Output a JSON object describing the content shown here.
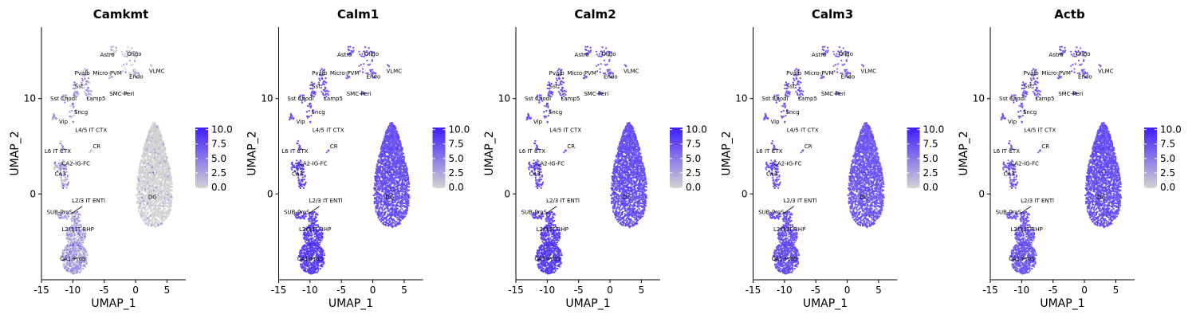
{
  "chart_data": [
    {
      "type": "scatter",
      "title": "Camkmt",
      "xlabel": "UMAP_1",
      "ylabel": "UMAP_2",
      "xlim": [
        -15,
        8
      ],
      "ylim": [
        -9,
        17.5
      ],
      "xticks": [
        -15,
        -10,
        -5,
        0,
        5
      ],
      "yticks": [
        0,
        10
      ],
      "grid": false,
      "legend": {
        "position": "right",
        "ticks": [
          10.0,
          7.5,
          5.0,
          2.5,
          0.0
        ],
        "range": [
          0,
          10.5
        ]
      },
      "color_scale": {
        "low": "#d3d3d3",
        "high": "#3b1dff"
      },
      "expression": {
        "DG": 0.5,
        "CA1-ProS": 2.5,
        "L2/3 IT RHP": 2.5,
        "SUB-ProS": 2.5,
        "L2/3 IT ENTl": 2.5,
        "CA3": 3.0,
        "CA2-IG-FC": 3.0,
        "L6 IT CTX": 3.0,
        "L4/5 IT CTX": 3.0,
        "CR": 2.0,
        "Vip": 3.0,
        "Sst Chodl": 3.0,
        "Sncg": 3.0,
        "Sst": 3.0,
        "Lamp5": 3.0,
        "Pvalb": 3.0,
        "Micro-PVM": 2.0,
        "Endo": 2.0,
        "SMC-Peri": 2.0,
        "Astro": 1.0,
        "Oligo": 1.0,
        "VLMC": 2.0
      }
    },
    {
      "type": "scatter",
      "title": "Calm1",
      "xlabel": "UMAP_1",
      "ylabel": "UMAP_2",
      "xlim": [
        -15,
        8
      ],
      "ylim": [
        -9,
        17.5
      ],
      "xticks": [
        -15,
        -10,
        -5,
        0,
        5
      ],
      "yticks": [
        0,
        10
      ],
      "grid": false,
      "legend": {
        "position": "right",
        "ticks": [
          10.0,
          7.5,
          5.0,
          2.5,
          0.0
        ],
        "range": [
          0,
          10.5
        ]
      },
      "color_scale": {
        "low": "#d3d3d3",
        "high": "#3b1dff"
      },
      "expression": {
        "DG": 7.5,
        "CA1-ProS": 8.5,
        "L2/3 IT RHP": 8.5,
        "SUB-ProS": 8.0,
        "L2/3 IT ENTl": 8.0,
        "CA3": 8.5,
        "CA2-IG-FC": 8.5,
        "L6 IT CTX": 8.0,
        "L4/5 IT CTX": 8.0,
        "CR": 7.0,
        "Vip": 7.5,
        "Sst Chodl": 7.5,
        "Sncg": 7.5,
        "Sst": 7.5,
        "Lamp5": 7.5,
        "Pvalb": 7.5,
        "Micro-PVM": 6.5,
        "Endo": 6.5,
        "SMC-Peri": 6.5,
        "Astro": 7.0,
        "Oligo": 7.0,
        "VLMC": 6.5
      }
    },
    {
      "type": "scatter",
      "title": "Calm2",
      "xlabel": "UMAP_1",
      "ylabel": "UMAP_2",
      "xlim": [
        -15,
        8
      ],
      "ylim": [
        -9,
        17.5
      ],
      "xticks": [
        -15,
        -10,
        -5,
        0,
        5
      ],
      "yticks": [
        0,
        10
      ],
      "grid": false,
      "legend": {
        "position": "right",
        "ticks": [
          10.0,
          7.5,
          5.0,
          2.5,
          0.0
        ],
        "range": [
          0,
          10.5
        ]
      },
      "color_scale": {
        "low": "#d3d3d3",
        "high": "#3b1dff"
      },
      "expression": {
        "DG": 7.5,
        "CA1-ProS": 8.5,
        "L2/3 IT RHP": 8.5,
        "SUB-ProS": 8.0,
        "L2/3 IT ENTl": 8.0,
        "CA3": 8.0,
        "CA2-IG-FC": 8.0,
        "L6 IT CTX": 8.0,
        "L4/5 IT CTX": 8.0,
        "CR": 7.5,
        "Vip": 7.5,
        "Sst Chodl": 7.5,
        "Sncg": 7.5,
        "Sst": 7.5,
        "Lamp5": 7.5,
        "Pvalb": 7.5,
        "Micro-PVM": 7.0,
        "Endo": 7.0,
        "SMC-Peri": 7.0,
        "Astro": 7.0,
        "Oligo": 7.0,
        "VLMC": 7.0
      }
    },
    {
      "type": "scatter",
      "title": "Calm3",
      "xlabel": "UMAP_1",
      "ylabel": "UMAP_2",
      "xlim": [
        -15,
        8
      ],
      "ylim": [
        -9,
        17.5
      ],
      "xticks": [
        -15,
        -10,
        -5,
        0,
        5
      ],
      "yticks": [
        0,
        10
      ],
      "grid": false,
      "legend": {
        "position": "right",
        "ticks": [
          10.0,
          7.5,
          5.0,
          2.5,
          0.0
        ],
        "range": [
          0,
          10.5
        ]
      },
      "color_scale": {
        "low": "#d3d3d3",
        "high": "#3b1dff"
      },
      "expression": {
        "DG": 7.0,
        "CA1-ProS": 7.5,
        "L2/3 IT RHP": 7.5,
        "SUB-ProS": 7.5,
        "L2/3 IT ENTl": 7.5,
        "CA3": 7.5,
        "CA2-IG-FC": 7.5,
        "L6 IT CTX": 7.5,
        "L4/5 IT CTX": 7.5,
        "CR": 7.0,
        "Vip": 7.0,
        "Sst Chodl": 7.0,
        "Sncg": 7.0,
        "Sst": 7.0,
        "Lamp5": 7.0,
        "Pvalb": 7.0,
        "Micro-PVM": 6.5,
        "Endo": 6.5,
        "SMC-Peri": 6.5,
        "Astro": 6.5,
        "Oligo": 6.5,
        "VLMC": 6.5
      }
    },
    {
      "type": "scatter",
      "title": "Actb",
      "xlabel": "UMAP_1",
      "ylabel": "UMAP_2",
      "xlim": [
        -15,
        8
      ],
      "ylim": [
        -9,
        17.5
      ],
      "xticks": [
        -15,
        -10,
        -5,
        0,
        5
      ],
      "yticks": [
        0,
        10
      ],
      "grid": false,
      "legend": {
        "position": "right",
        "ticks": [
          10.0,
          7.5,
          5.0,
          2.5,
          0.0
        ],
        "range": [
          0,
          10.5
        ]
      },
      "color_scale": {
        "low": "#d3d3d3",
        "high": "#3b1dff"
      },
      "expression": {
        "DG": 7.5,
        "CA1-ProS": 7.0,
        "L2/3 IT RHP": 7.0,
        "SUB-ProS": 7.0,
        "L2/3 IT ENTl": 7.0,
        "CA3": 7.0,
        "CA2-IG-FC": 7.0,
        "L6 IT CTX": 7.0,
        "L4/5 IT CTX": 7.0,
        "CR": 7.0,
        "Vip": 7.0,
        "Sst Chodl": 7.0,
        "Sncg": 7.0,
        "Sst": 7.0,
        "Lamp5": 7.0,
        "Pvalb": 7.0,
        "Micro-PVM": 7.0,
        "Endo": 7.0,
        "SMC-Peri": 7.0,
        "Astro": 7.0,
        "Oligo": 7.0,
        "VLMC": 7.0
      }
    }
  ],
  "clusters": [
    {
      "name": "Astro",
      "cx": -3.5,
      "cy": 15.0,
      "rx": 0.5,
      "ry": 0.7,
      "n": 18,
      "lx": -4.5,
      "ly": 14.4
    },
    {
      "name": "Oligo",
      "cx": -1.0,
      "cy": 14.0,
      "rx": 1.6,
      "ry": 1.6,
      "n": 40,
      "lx": -0.2,
      "ly": 14.5
    },
    {
      "name": "VLMC",
      "cx": 2.5,
      "cy": 13.5,
      "rx": 0.3,
      "ry": 0.4,
      "n": 5,
      "lx": 3.4,
      "ly": 12.7
    },
    {
      "name": "Pvalb",
      "cx": -8.0,
      "cy": 12.0,
      "rx": 0.7,
      "ry": 1.2,
      "n": 30,
      "lx": -8.5,
      "ly": 12.5
    },
    {
      "name": "Micro-PVM",
      "cx": -4.0,
      "cy": 12.3,
      "rx": 0.4,
      "ry": 0.4,
      "n": 8,
      "lx": -4.5,
      "ly": 12.5
    },
    {
      "name": "Endo",
      "cx": 0.2,
      "cy": 12.8,
      "rx": 0.5,
      "ry": 0.6,
      "n": 12,
      "lx": 0.1,
      "ly": 12.1
    },
    {
      "name": "SMC-Peri",
      "cx": -1.5,
      "cy": 10.6,
      "rx": 0.4,
      "ry": 0.4,
      "n": 8,
      "lx": -2.2,
      "ly": 10.3
    },
    {
      "name": "Sst",
      "cx": -9.5,
      "cy": 11.0,
      "rx": 0.6,
      "ry": 0.8,
      "n": 25,
      "lx": -9.0,
      "ly": 11.1
    },
    {
      "name": "Lamp5",
      "cx": -7.5,
      "cy": 10.6,
      "rx": 0.7,
      "ry": 0.6,
      "n": 20,
      "lx": -6.3,
      "ly": 9.8
    },
    {
      "name": "Sst Chodl",
      "cx": -11.2,
      "cy": 10.0,
      "rx": 0.5,
      "ry": 0.5,
      "n": 10,
      "lx": -11.5,
      "ly": 9.8
    },
    {
      "name": "Sncg",
      "cx": -10.0,
      "cy": 8.5,
      "rx": 0.6,
      "ry": 1.0,
      "n": 22,
      "lx": -8.7,
      "ly": 8.4
    },
    {
      "name": "Vip",
      "cx": -13.0,
      "cy": 8.0,
      "rx": 0.4,
      "ry": 0.5,
      "n": 12,
      "lx": -11.5,
      "ly": 7.4
    },
    {
      "name": "L4/5 IT CTX",
      "cx": -12.0,
      "cy": 5.3,
      "rx": 0.4,
      "ry": 0.4,
      "n": 6,
      "lx": -7.1,
      "ly": 6.5
    },
    {
      "name": "CR",
      "cx": -7.1,
      "cy": 4.3,
      "rx": 0.3,
      "ry": 0.3,
      "n": 5,
      "lx": -6.2,
      "ly": 4.8
    },
    {
      "name": "L6 IT CTX",
      "cx": -11.5,
      "cy": 4.8,
      "rx": 0.3,
      "ry": 0.4,
      "n": 6,
      "lx": -12.4,
      "ly": 4.3
    },
    {
      "name": "CA2-IG-FC",
      "cx": -12.0,
      "cy": 2.8,
      "rx": 1.1,
      "ry": 0.8,
      "n": 55,
      "lx": -9.5,
      "ly": 3.0
    },
    {
      "name": "CA3",
      "cx": -11.3,
      "cy": 1.6,
      "rx": 0.7,
      "ry": 1.2,
      "n": 45,
      "lx": -12.0,
      "ly": 1.9
    },
    {
      "name": "DG",
      "cx": 3.0,
      "cy": 2.0,
      "rx": 3.4,
      "ry": 5.5,
      "n": 2200,
      "lx": 2.7,
      "ly": -0.5
    },
    {
      "name": "L2/3 IT ENTl",
      "cx": -9.5,
      "cy": -2.5,
      "rx": 0.8,
      "ry": 0.7,
      "n": 60,
      "lx": -7.5,
      "ly": -0.9
    },
    {
      "name": "SUB-ProS",
      "cx": -11.5,
      "cy": -2.3,
      "rx": 1.0,
      "ry": 0.4,
      "n": 40,
      "lx": -12.1,
      "ly": -2.1
    },
    {
      "name": "L2/3 IT RHP",
      "cx": -9.5,
      "cy": -4.3,
      "rx": 1.6,
      "ry": 1.2,
      "n": 200,
      "lx": -9.2,
      "ly": -3.9
    },
    {
      "name": "CA1-ProS",
      "cx": -9.7,
      "cy": -6.7,
      "rx": 2.1,
      "ry": 1.7,
      "n": 500,
      "lx": -10.0,
      "ly": -7.0
    }
  ],
  "cluster_arrow": {
    "from": [
      -8.5,
      -1.3
    ],
    "to": [
      -10.3,
      -2.1
    ]
  }
}
